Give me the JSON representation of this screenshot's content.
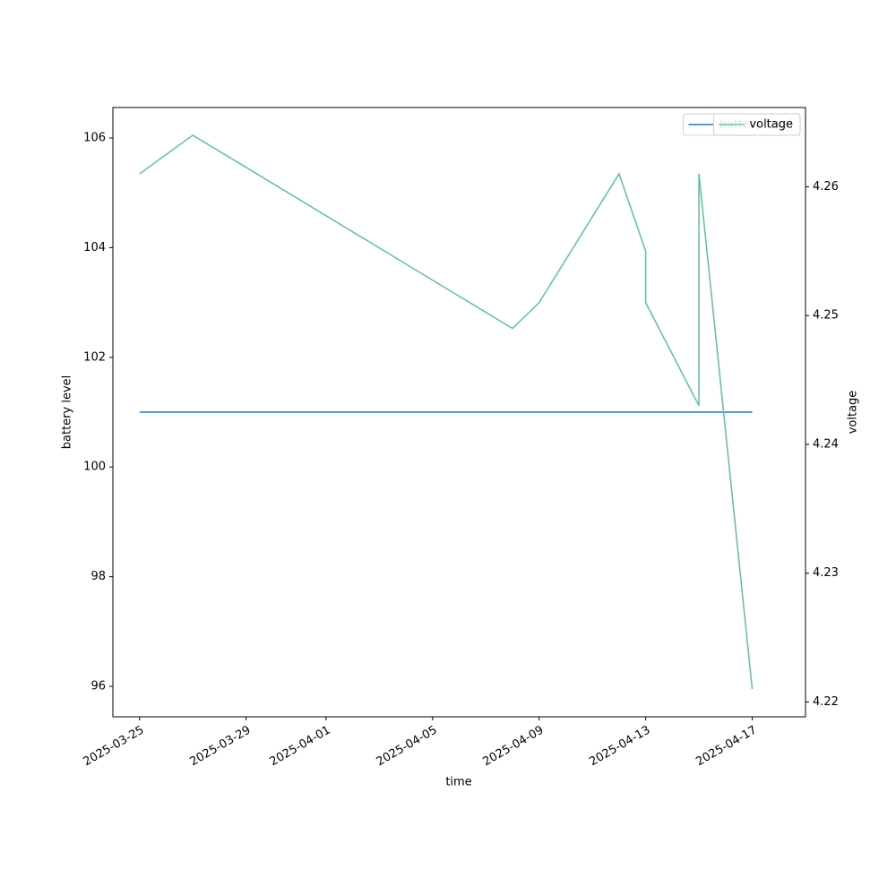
{
  "chart_data": {
    "type": "line",
    "x_label": "time",
    "y_label": "battery level",
    "y2_label": "voltage",
    "x": [
      "2025-03-25",
      "2025-03-27",
      "2025-04-08",
      "2025-04-09",
      "2025-04-12",
      "2025-04-13",
      "2025-04-13",
      "2025-04-15",
      "2025-04-15",
      "2025-04-17"
    ],
    "series": [
      {
        "name": "battery level",
        "color": "#1f77b4",
        "values": [
          101,
          101,
          101,
          101,
          101,
          101,
          101,
          101,
          101,
          101
        ]
      },
      {
        "name": "voltage",
        "color": "#66c2a5",
        "axis": "y2",
        "values": [
          4.261,
          4.264,
          4.249,
          4.251,
          4.261,
          4.255,
          4.251,
          4.243,
          4.261,
          4.221
        ]
      }
    ],
    "xlim": [
      "2025-03-24",
      "2025-04-19"
    ],
    "xticks": [
      "2025-03-25",
      "2025-03-29",
      "2025-04-01",
      "2025-04-05",
      "2025-04-09",
      "2025-04-13",
      "2025-04-17"
    ],
    "ylim": [
      95.445,
      106.555
    ],
    "yticks": [
      96,
      98,
      100,
      102,
      104,
      106
    ],
    "y2lim": [
      4.21885,
      4.26615
    ],
    "y2ticks": [
      4.22,
      4.23,
      4.24,
      4.25,
      4.26
    ],
    "legend": "upper right"
  }
}
